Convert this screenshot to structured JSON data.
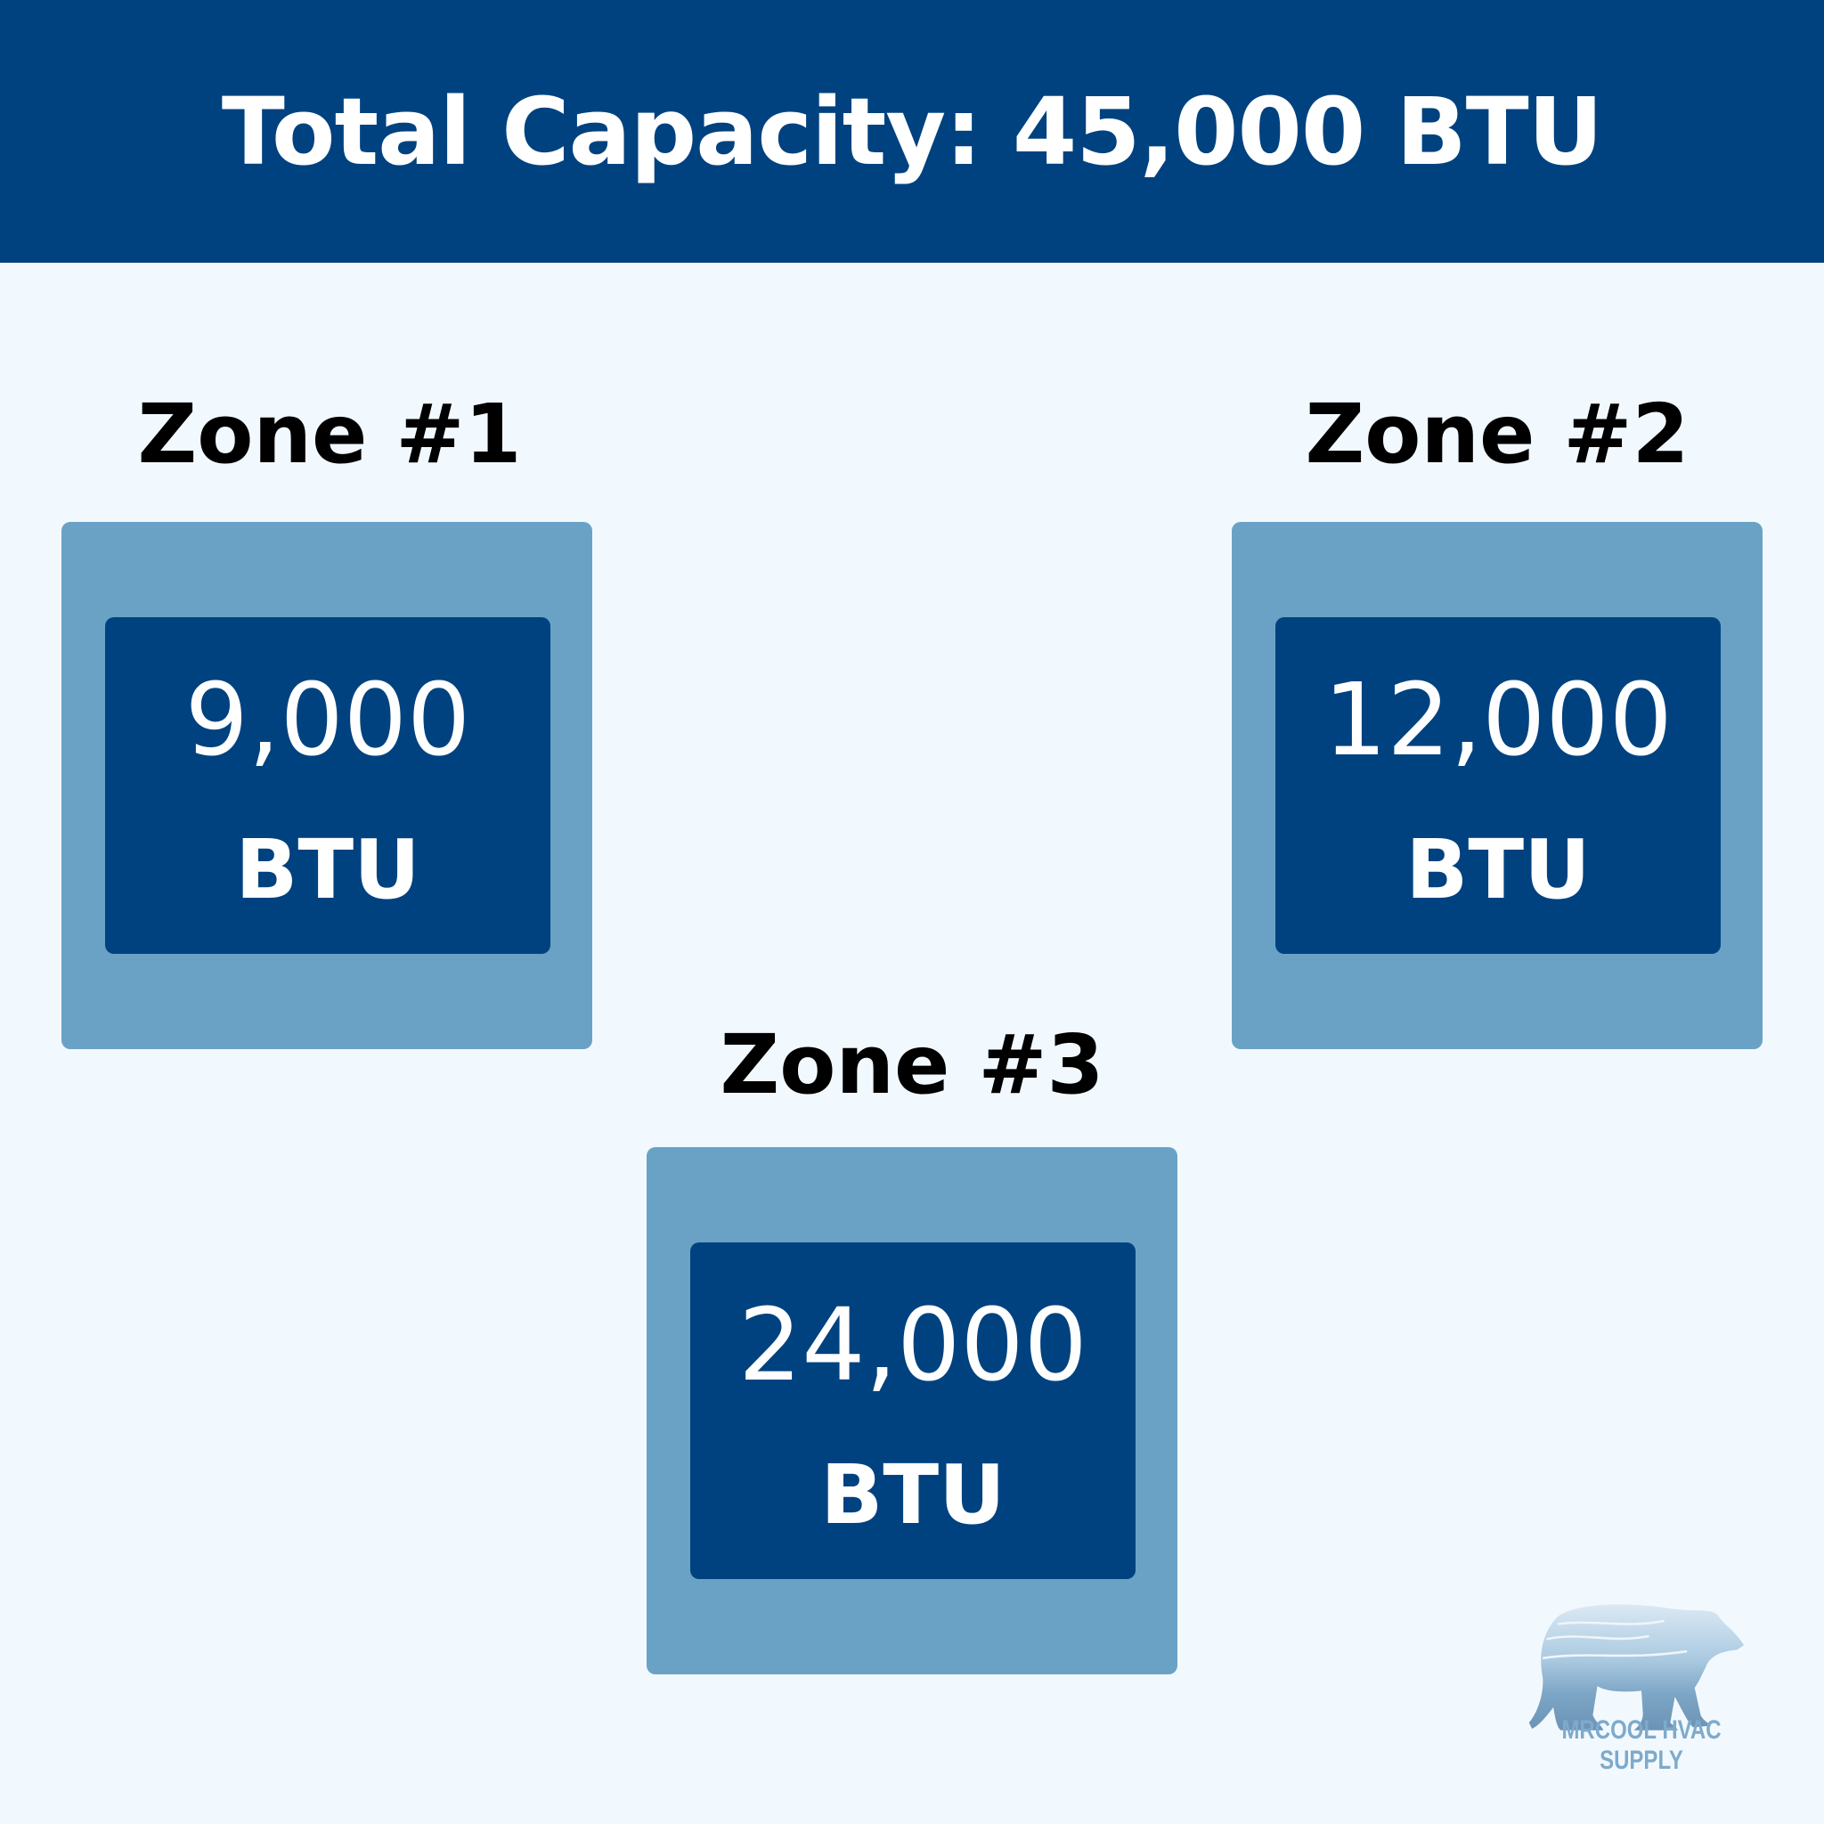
{
  "header": {
    "title": "Total Capacity: 45,000 BTU"
  },
  "zones": [
    {
      "label": "Zone #1",
      "value": "9,000",
      "unit": "BTU"
    },
    {
      "label": "Zone #2",
      "value": "12,000",
      "unit": "BTU"
    },
    {
      "label": "Zone #3",
      "value": "24,000",
      "unit": "BTU"
    }
  ],
  "logo": {
    "text": "MRCOOL HVAC SUPPLY",
    "icon": "polar-bear-icon"
  },
  "colors": {
    "header": "#00427f",
    "outer_box": "#6aa2c6",
    "inner_box": "#00427f",
    "background": "#f2f9fe"
  }
}
